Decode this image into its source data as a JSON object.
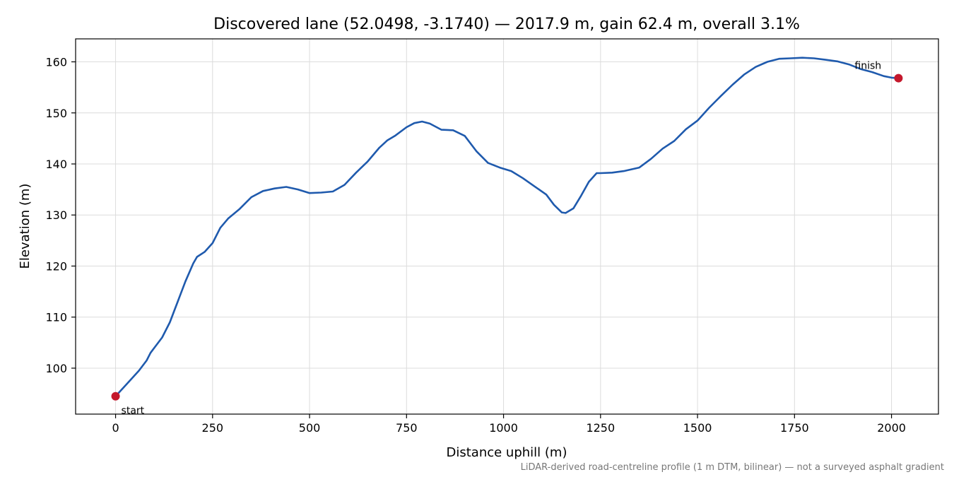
{
  "chart_data": {
    "type": "line",
    "title": "Discovered lane (52.0498, -3.1740) — 2017.9 m, gain 62.4 m, overall 3.1%",
    "xlabel": "Distance uphill (m)",
    "ylabel": "Elevation (m)",
    "footnote": "LiDAR-derived road-centreline profile (1 m DTM, bilinear) — not a surveyed asphalt gradient",
    "xlim": [
      -103,
      2121
    ],
    "ylim": [
      91,
      164.5
    ],
    "grid": true,
    "xticks": [
      0,
      250,
      500,
      750,
      1000,
      1250,
      1500,
      1750,
      2000
    ],
    "yticks": [
      100,
      110,
      120,
      130,
      140,
      150,
      160
    ],
    "series": [
      {
        "color": "#1f5aad",
        "x": [
          0,
          30,
          60,
          80,
          90,
          100,
          120,
          140,
          150,
          160,
          180,
          200,
          210,
          230,
          250,
          270,
          290,
          320,
          350,
          380,
          410,
          440,
          470,
          500,
          530,
          560,
          590,
          620,
          650,
          680,
          700,
          720,
          750,
          770,
          790,
          810,
          840,
          870,
          900,
          930,
          960,
          990,
          1020,
          1050,
          1080,
          1110,
          1130,
          1150,
          1160,
          1180,
          1200,
          1220,
          1240,
          1250,
          1280,
          1310,
          1350,
          1380,
          1410,
          1440,
          1470,
          1500,
          1530,
          1560,
          1590,
          1620,
          1650,
          1680,
          1710,
          1740,
          1770,
          1800,
          1830,
          1860,
          1890,
          1920,
          1950,
          1980,
          2000,
          2017.9
        ],
        "y": [
          94.5,
          97,
          99.5,
          101.5,
          103,
          104,
          106,
          109,
          111,
          113,
          117,
          120.5,
          121.8,
          122.8,
          124.5,
          127.5,
          129.3,
          131.2,
          133.5,
          134.7,
          135.2,
          135.5,
          135,
          134.3,
          134.4,
          134.6,
          135.9,
          138.3,
          140.5,
          143.2,
          144.6,
          145.5,
          147.2,
          148,
          148.3,
          147.9,
          146.7,
          146.6,
          145.5,
          142.5,
          140.2,
          139.3,
          138.6,
          137.2,
          135.6,
          134,
          132,
          130.5,
          130.4,
          131.3,
          133.8,
          136.5,
          138.2,
          138.2,
          138.3,
          138.6,
          139.3,
          141,
          143,
          144.5,
          146.8,
          148.5,
          151,
          153.3,
          155.5,
          157.5,
          159,
          160,
          160.6,
          160.7,
          160.8,
          160.7,
          160.4,
          160.1,
          159.5,
          158.6,
          158,
          157.2,
          156.9,
          156.8
        ]
      }
    ],
    "annotations": [
      {
        "text": "start",
        "x": 0,
        "y": 94.5,
        "marker_color": "#c4182c"
      },
      {
        "text": "finish",
        "x": 2017.9,
        "y": 156.8,
        "marker_color": "#c4182c"
      }
    ]
  }
}
